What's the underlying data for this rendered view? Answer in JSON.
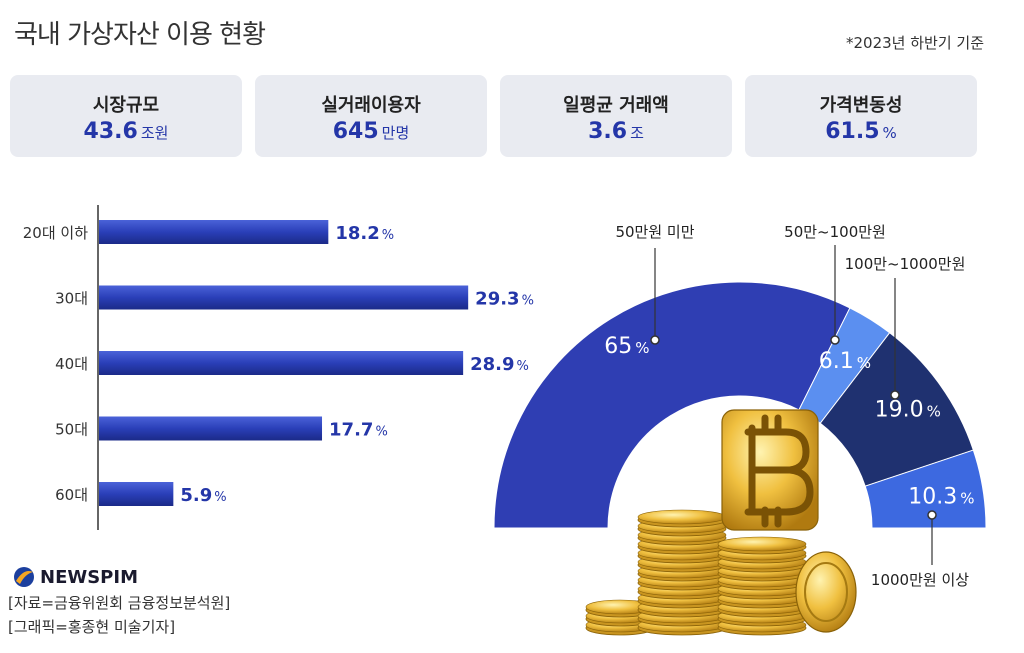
{
  "header": {
    "title": "국내 가상자산 이용 현황",
    "basis": "*2023년 하반기 기준"
  },
  "cards": [
    {
      "label": "시장규모",
      "value": "43.6",
      "unit": "조원"
    },
    {
      "label": "실거래이용자",
      "value": "645",
      "unit": "만명"
    },
    {
      "label": "일평균 거래액",
      "value": "3.6",
      "unit": "조"
    },
    {
      "label": "가격변동성",
      "value": "61.5",
      "unit": "%"
    }
  ],
  "chart_data": [
    {
      "type": "bar",
      "orientation": "horizontal",
      "categories": [
        "20대 이하",
        "30대",
        "40대",
        "50대",
        "60대"
      ],
      "values": [
        18.2,
        29.3,
        28.9,
        17.7,
        5.9
      ],
      "value_labels": [
        "18.2",
        "29.3",
        "28.9",
        "17.7",
        "5.9"
      ],
      "unit": "%",
      "colors": {
        "bar": "#2a3fb8"
      }
    },
    {
      "type": "pie",
      "variant": "semi-donut",
      "categories": [
        "50만원 미만",
        "50만~100만원",
        "100만~1000만원",
        "1000만원 이상"
      ],
      "values": [
        65,
        6.1,
        19.0,
        10.3
      ],
      "value_labels": [
        "65",
        "6.1",
        "19.0",
        "10.3"
      ],
      "unit": "%",
      "colors": [
        "#2f3eb3",
        "#5b8ff0",
        "#1f3170",
        "#3d69e0"
      ]
    }
  ],
  "footer": {
    "logo": "NEWSPIM",
    "source": "[자료=금융위원회 금융정보분석원]",
    "graphic": "[그래픽=홍종현 미술기자]"
  }
}
